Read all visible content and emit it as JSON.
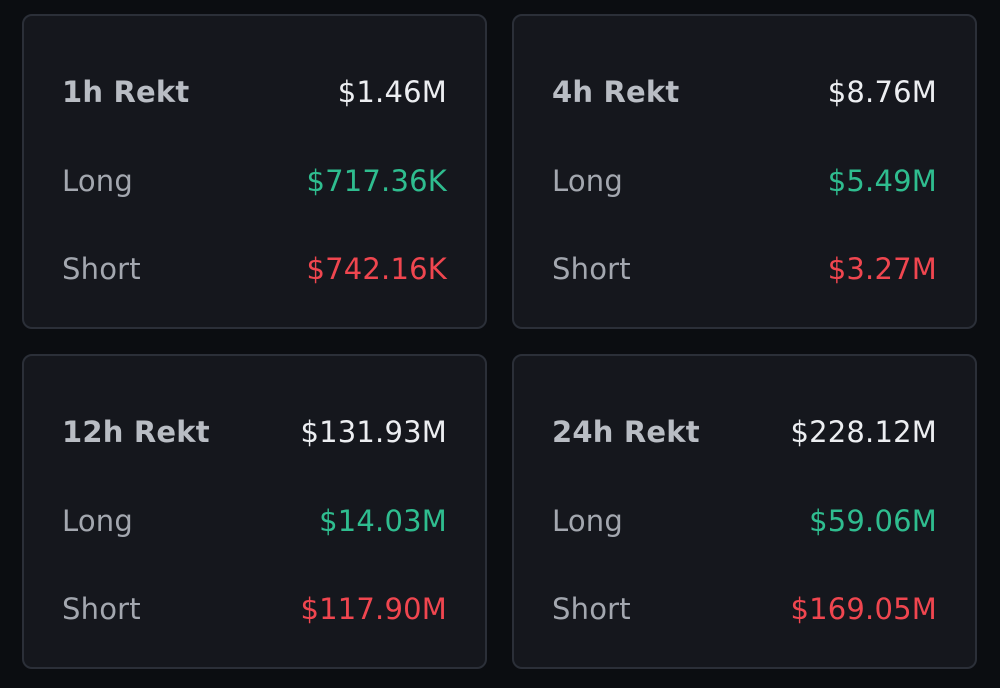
{
  "colors": {
    "background": "#0b0d11",
    "card": "#15171d",
    "card_border": "#2b2f38",
    "long": "#2fbd8f",
    "short": "#f0464f",
    "total": "#eceef1"
  },
  "cards": [
    {
      "title": "1h Rekt",
      "total": "$1.46M",
      "long_label": "Long",
      "long": "$717.36K",
      "short_label": "Short",
      "short": "$742.16K"
    },
    {
      "title": "4h Rekt",
      "total": "$8.76M",
      "long_label": "Long",
      "long": "$5.49M",
      "short_label": "Short",
      "short": "$3.27M"
    },
    {
      "title": "12h Rekt",
      "total": "$131.93M",
      "long_label": "Long",
      "long": "$14.03M",
      "short_label": "Short",
      "short": "$117.90M"
    },
    {
      "title": "24h Rekt",
      "total": "$228.12M",
      "long_label": "Long",
      "long": "$59.06M",
      "short_label": "Short",
      "short": "$169.05M"
    }
  ]
}
